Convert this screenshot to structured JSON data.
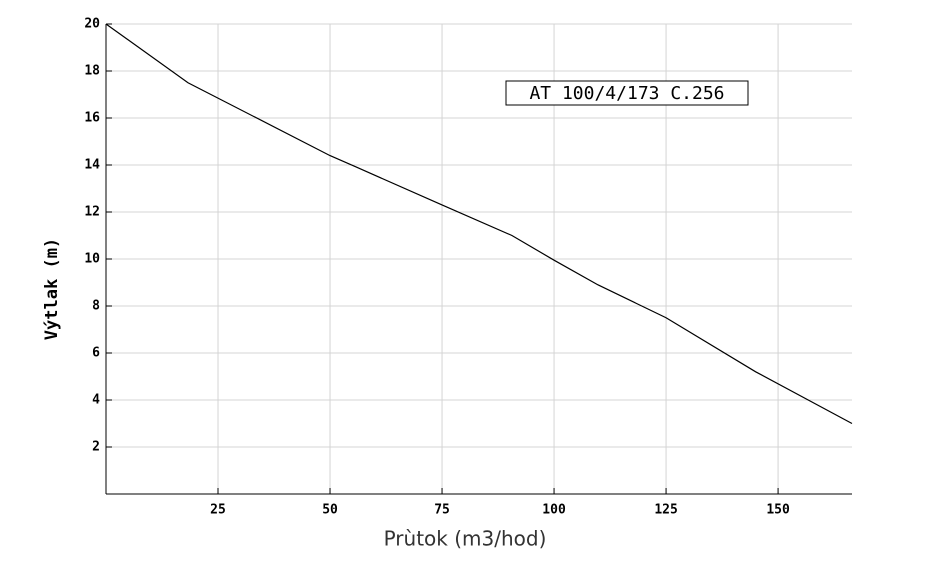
{
  "chart_data": {
    "type": "line",
    "annotation": "AT 100/4/173 C.256",
    "x_label": "Prùtok (m3/hod)",
    "y_label": "Výtlak (m)",
    "x": [
      0,
      18.3,
      50,
      56,
      75,
      90.6,
      100,
      109.8,
      125,
      145,
      166.5
    ],
    "series": [
      {
        "color": "#000000",
        "values": [
          20,
          17.5,
          14.4,
          13.9,
          12.3,
          11,
          9.95,
          8.9,
          7.5,
          5.2,
          3
        ]
      }
    ],
    "xlim": [
      0,
      166.5
    ],
    "xticks": [
      25,
      50,
      75,
      100,
      125,
      150
    ],
    "ylim": [
      0,
      20
    ],
    "yticks": [
      2,
      4,
      6,
      8,
      10,
      12,
      14,
      16,
      18,
      20
    ],
    "grid": true
  }
}
